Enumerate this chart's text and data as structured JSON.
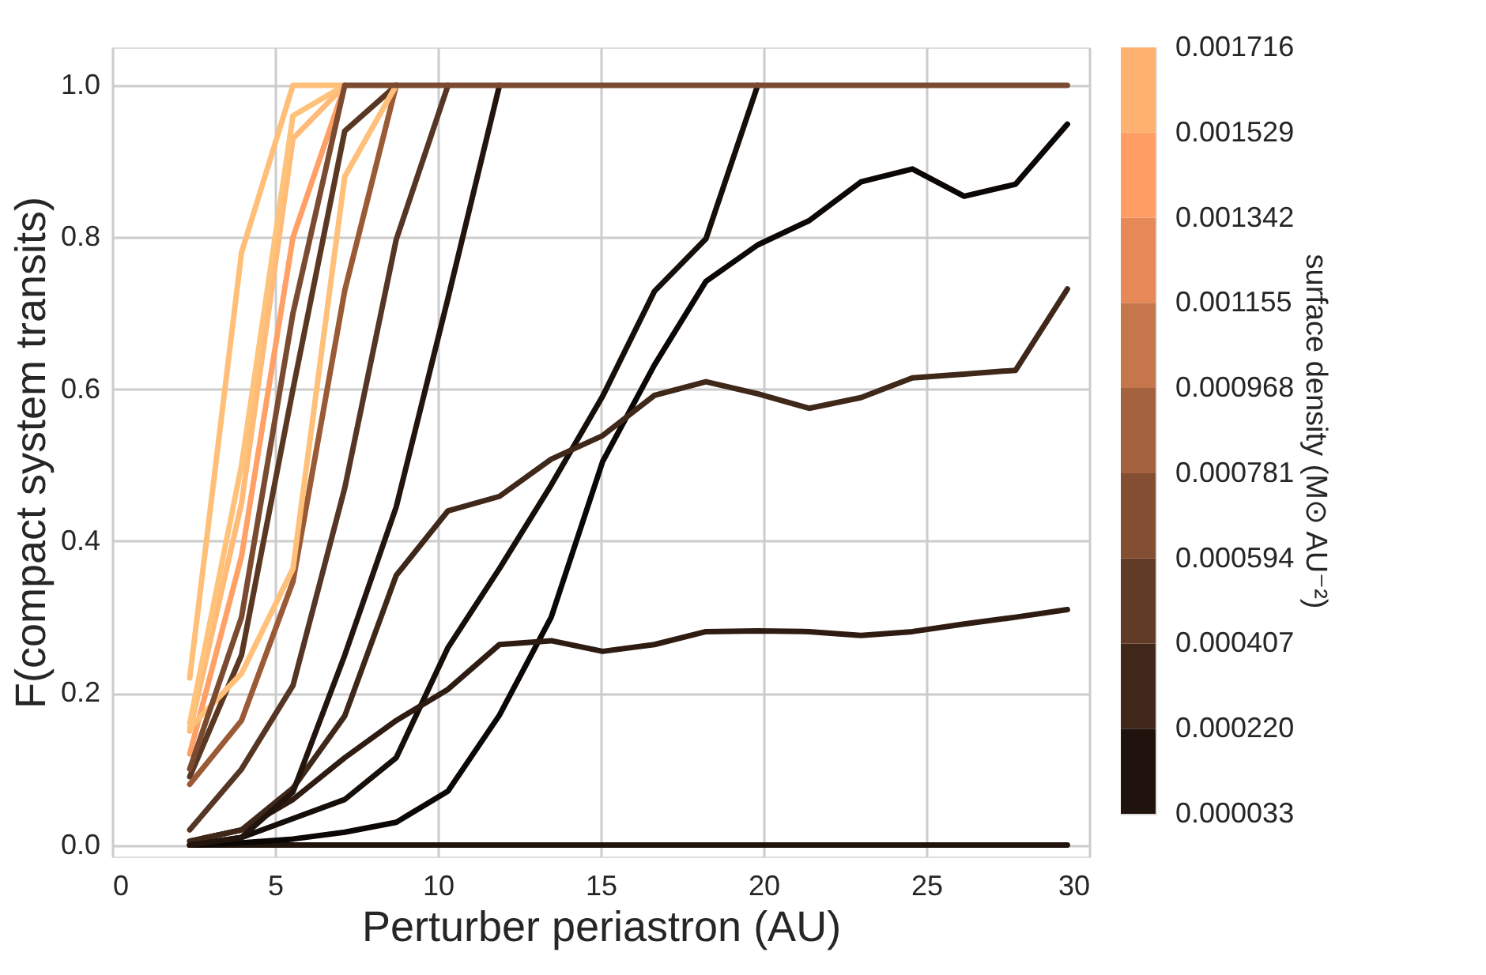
{
  "chart_data": {
    "type": "line",
    "xlabel": "Perturber periastron (AU)",
    "ylabel": "F(compact system transits)",
    "clabel": "surface density (M⊙ AU⁻²)",
    "x": [
      2.38,
      3.97,
      5.55,
      7.14,
      8.72,
      10.31,
      11.89,
      13.48,
      15.06,
      16.65,
      18.23,
      19.82,
      21.4,
      22.99,
      24.57,
      26.16,
      27.74,
      29.33
    ],
    "xlim": [
      0,
      30
    ],
    "xticks": [
      0,
      5,
      10,
      15,
      20,
      25,
      30
    ],
    "ylim": [
      -0.015,
      1.05
    ],
    "yticks": [
      {
        "value": 0,
        "label": "0.0"
      },
      0.2,
      0.4,
      0.6,
      0.8,
      {
        "value": 1,
        "label": "1.0"
      }
    ],
    "grid": true,
    "legend": false,
    "line_style": "solid",
    "marker": "none",
    "clim": [
      3.3e-05,
      0.001716
    ],
    "cticks": [
      {
        "value": 3.3e-05,
        "label": "0.000033"
      },
      {
        "value": 0.00022,
        "label": "0.000220"
      },
      {
        "value": 0.000407,
        "label": "0.000407"
      },
      {
        "value": 0.000594,
        "label": "0.000594"
      },
      {
        "value": 0.000781,
        "label": "0.000781"
      },
      {
        "value": 0.000968,
        "label": "0.000968"
      },
      {
        "value": 0.001155,
        "label": "0.001155"
      },
      {
        "value": 0.001342,
        "label": "0.001342"
      },
      {
        "value": 0.001529,
        "label": "0.001529"
      },
      {
        "value": 0.001716,
        "label": "0.001716"
      }
    ],
    "series": [
      {
        "color": "#20140c",
        "values": [
          0,
          0,
          0,
          0,
          0,
          0,
          0,
          0,
          0,
          0,
          0,
          0,
          0,
          0,
          0,
          0,
          0,
          0
        ]
      },
      {
        "color": "#0a0705",
        "values": [
          0,
          0.003,
          0.008,
          0.017,
          0.03,
          0.071,
          0.171,
          0.3,
          0.505,
          0.632,
          0.742,
          0.79,
          0.822,
          0.873,
          0.89,
          0.854,
          0.87,
          0.949
        ]
      },
      {
        "color": "#150e09",
        "values": [
          0,
          0.01,
          0.035,
          0.06,
          0.115,
          0.26,
          0.364,
          0.474,
          0.591,
          0.729,
          0.798,
          1.0,
          null,
          null,
          null,
          null,
          null,
          null
        ]
      },
      {
        "color": "#2e1c12",
        "values": [
          0.005,
          0.02,
          0.06,
          0.115,
          0.164,
          0.205,
          0.264,
          0.269,
          0.255,
          0.264,
          0.281,
          0.282,
          0.281,
          0.276,
          0.281,
          0.291,
          0.3,
          0.31
        ]
      },
      {
        "color": "#3f281a",
        "values": [
          0.005,
          0.02,
          0.075,
          0.17,
          0.355,
          0.44,
          0.459,
          0.508,
          0.539,
          0.592,
          0.61,
          0.594,
          0.575,
          0.589,
          0.615,
          0.62,
          0.625,
          0.732
        ]
      },
      {
        "color": "#22150d",
        "values": [
          0,
          0.01,
          0.07,
          0.25,
          0.445,
          0.72,
          1.0,
          null,
          null,
          null,
          null,
          null,
          null,
          null,
          null,
          null,
          null,
          null
        ]
      },
      {
        "color": "#553523",
        "values": [
          0.02,
          0.1,
          0.21,
          0.47,
          0.797,
          1.0,
          null,
          null,
          null,
          null,
          null,
          null,
          null,
          null,
          null,
          null,
          null,
          null
        ]
      },
      {
        "color": "#5a3722",
        "values": [
          0.09,
          0.25,
          0.6,
          0.94,
          1.0,
          null,
          null,
          null,
          null,
          null,
          null,
          null,
          null,
          null,
          null,
          null,
          null,
          null
        ]
      },
      {
        "color": "#9a5a35",
        "values": [
          0.08,
          0.164,
          0.347,
          0.73,
          1.0,
          null,
          null,
          null,
          null,
          null,
          null,
          null,
          null,
          null,
          null,
          null,
          null,
          null
        ]
      },
      {
        "color": "#ffa067",
        "values": [
          0.12,
          0.38,
          0.8,
          1.0,
          null,
          null,
          null,
          null,
          null,
          null,
          null,
          null,
          null,
          null,
          null,
          null,
          null,
          null
        ]
      },
      {
        "color": "#ffbb77",
        "values": [
          0.15,
          0.45,
          0.93,
          1.0,
          null,
          null,
          null,
          null,
          null,
          null,
          null,
          null,
          null,
          null,
          null,
          null,
          null,
          null
        ]
      },
      {
        "color": "#ffc27a",
        "values": [
          0.16,
          0.5,
          0.96,
          1.0,
          null,
          null,
          null,
          null,
          null,
          null,
          null,
          null,
          null,
          null,
          null,
          null,
          null,
          null
        ]
      },
      {
        "color": "#ffc07a",
        "values": [
          0.154,
          0.226,
          0.364,
          0.88,
          1.0,
          null,
          null,
          null,
          null,
          null,
          null,
          null,
          null,
          null,
          null,
          null,
          null,
          null
        ]
      },
      {
        "color": "#ffbf78",
        "values": [
          0.22,
          0.78,
          1.0,
          1.0,
          null,
          null,
          null,
          null,
          null,
          null,
          null,
          null,
          null,
          null,
          null,
          null,
          null,
          null
        ]
      },
      {
        "color": "#7a4b30",
        "values": [
          0.1,
          0.3,
          0.7,
          1.0,
          1.0,
          1.0,
          1.0,
          1.0,
          1.0,
          1.0,
          1.0,
          1.0,
          1.0,
          1.0,
          1.0,
          1.0,
          1.0,
          1.0
        ]
      }
    ]
  }
}
